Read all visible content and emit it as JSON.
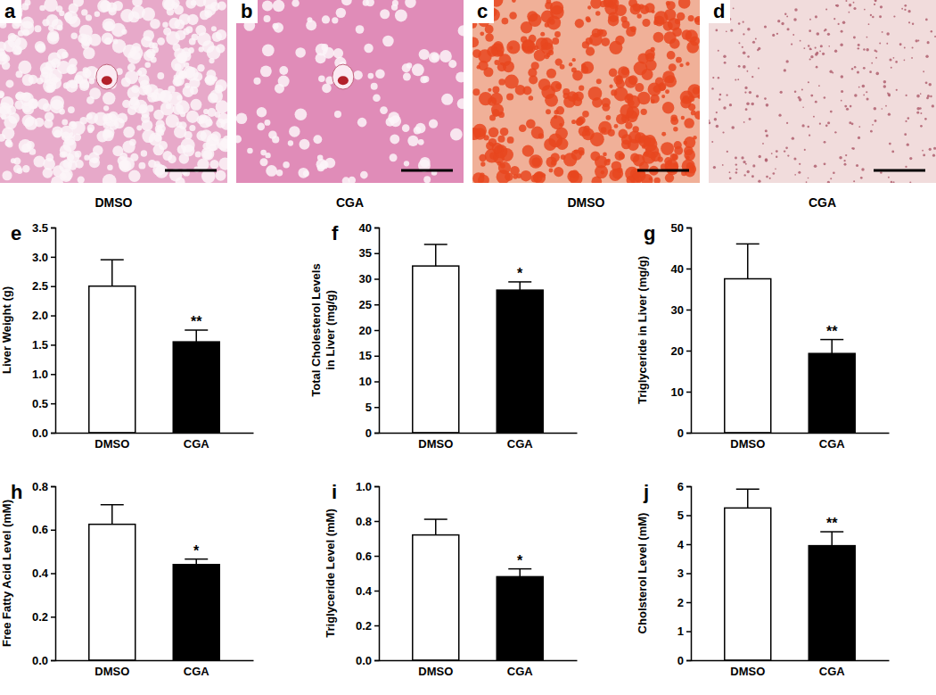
{
  "images": [
    {
      "panel": "a",
      "label": "DMSO"
    },
    {
      "panel": "b",
      "label": "CGA"
    },
    {
      "panel": "c",
      "label": "DMSO"
    },
    {
      "panel": "d",
      "label": "CGA"
    }
  ],
  "chart_data": [
    {
      "type": "bar",
      "panel": "e",
      "y_label": [
        "Liver Weight (g)"
      ],
      "categories": [
        "DMSO",
        "CGA"
      ],
      "values": [
        2.5,
        1.55
      ],
      "errors": [
        0.45,
        0.2
      ],
      "significance": [
        null,
        "**"
      ],
      "colors": [
        "#ffffff",
        "#000000"
      ],
      "ylim": [
        0,
        3.5
      ],
      "yticks": [
        {
          "value": 0,
          "label": "0.0"
        },
        0.5,
        {
          "value": 1,
          "label": "1.0"
        },
        1.5,
        {
          "value": 2,
          "label": "2.0"
        },
        2.5,
        {
          "value": 3,
          "label": "3.0"
        },
        3.5
      ]
    },
    {
      "type": "bar",
      "panel": "f",
      "y_label": [
        "Total Cholesterol Levels",
        "in Liver (mg/g)"
      ],
      "categories": [
        "DMSO",
        "CGA"
      ],
      "values": [
        32.5,
        27.8
      ],
      "errors": [
        4.2,
        1.6
      ],
      "significance": [
        null,
        "*"
      ],
      "colors": [
        "#ffffff",
        "#000000"
      ],
      "ylim": [
        0,
        40
      ],
      "yticks": [
        0,
        5,
        10,
        15,
        20,
        25,
        30,
        35,
        40
      ]
    },
    {
      "type": "bar",
      "panel": "g",
      "y_label": [
        "Triglyceride in Liver (mg/g)"
      ],
      "categories": [
        "DMSO",
        "CGA"
      ],
      "values": [
        37.5,
        19.3
      ],
      "errors": [
        8.5,
        3.4
      ],
      "significance": [
        null,
        "**"
      ],
      "colors": [
        "#ffffff",
        "#000000"
      ],
      "ylim": [
        0,
        50
      ],
      "yticks": [
        0,
        10,
        20,
        30,
        40,
        50
      ]
    },
    {
      "type": "bar",
      "panel": "h",
      "y_label": [
        "Free Fatty Acid Level (mM)"
      ],
      "categories": [
        "DMSO",
        "CGA"
      ],
      "values": [
        0.625,
        0.44
      ],
      "errors": [
        0.09,
        0.025
      ],
      "significance": [
        null,
        "*"
      ],
      "colors": [
        "#ffffff",
        "#000000"
      ],
      "ylim": [
        0,
        0.8
      ],
      "yticks": [
        {
          "value": 0,
          "label": "0.0"
        },
        0.2,
        0.4,
        0.6,
        0.8
      ]
    },
    {
      "type": "bar",
      "panel": "i",
      "y_label": [
        "Triglyceride Level (mM)"
      ],
      "categories": [
        "DMSO",
        "CGA"
      ],
      "values": [
        0.72,
        0.48
      ],
      "errors": [
        0.09,
        0.045
      ],
      "significance": [
        null,
        "*"
      ],
      "colors": [
        "#ffffff",
        "#000000"
      ],
      "ylim": [
        0,
        1.0
      ],
      "yticks": [
        {
          "value": 0,
          "label": "0.0"
        },
        0.2,
        0.4,
        0.6,
        0.8,
        {
          "value": 1,
          "label": "1.0"
        }
      ]
    },
    {
      "type": "bar",
      "panel": "j",
      "y_label": [
        "Cholsterol Level (mM)"
      ],
      "categories": [
        "DMSO",
        "CGA"
      ],
      "values": [
        5.25,
        3.95
      ],
      "errors": [
        0.65,
        0.48
      ],
      "significance": [
        null,
        "**"
      ],
      "colors": [
        "#ffffff",
        "#000000"
      ],
      "ylim": [
        0,
        6
      ],
      "yticks": [
        0,
        1,
        2,
        3,
        4,
        5,
        6
      ]
    }
  ]
}
